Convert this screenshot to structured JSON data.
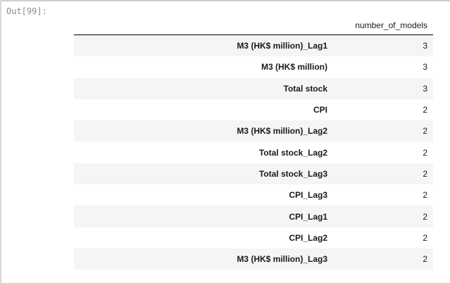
{
  "output_prompt": "Out[99]:",
  "table": {
    "column_header": "number_of_models",
    "rows": [
      {
        "index": "M3 (HK$ million)_Lag1",
        "value": "3"
      },
      {
        "index": "M3 (HK$ million)",
        "value": "3"
      },
      {
        "index": "Total stock",
        "value": "3"
      },
      {
        "index": "CPI",
        "value": "2"
      },
      {
        "index": "M3 (HK$ million)_Lag2",
        "value": "2"
      },
      {
        "index": "Total stock_Lag2",
        "value": "2"
      },
      {
        "index": "Total stock_Lag3",
        "value": "2"
      },
      {
        "index": "CPI_Lag3",
        "value": "2"
      },
      {
        "index": "CPI_Lag1",
        "value": "2"
      },
      {
        "index": "CPI_Lag2",
        "value": "2"
      },
      {
        "index": "M3 (HK$ million)_Lag3",
        "value": "2"
      }
    ]
  }
}
